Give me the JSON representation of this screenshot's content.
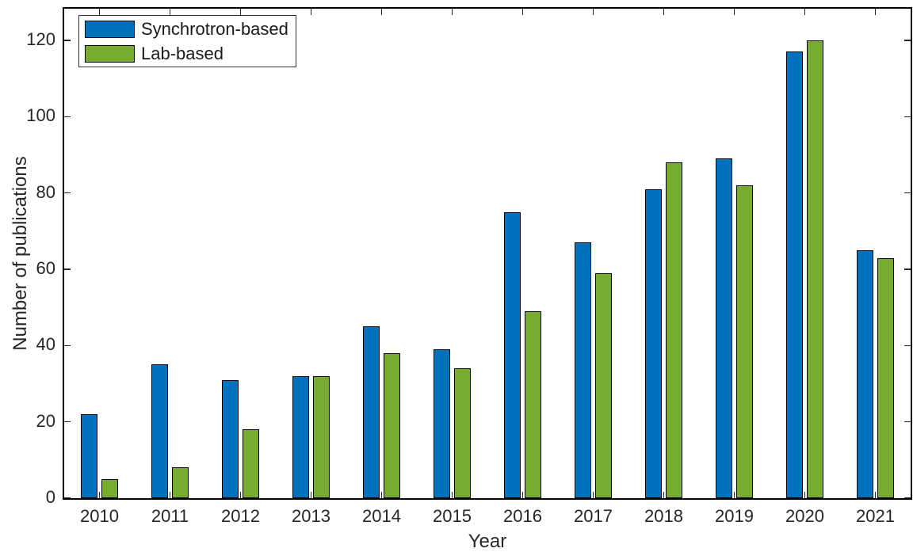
{
  "chart_data": {
    "type": "bar",
    "title": "",
    "xlabel": "Year",
    "ylabel": "Number of publications",
    "categories": [
      "2010",
      "2011",
      "2012",
      "2013",
      "2014",
      "2015",
      "2016",
      "2017",
      "2018",
      "2019",
      "2020",
      "2021"
    ],
    "series": [
      {
        "name": "Synchrotron-based",
        "color": "#0072BD",
        "values": [
          22,
          35,
          31,
          32,
          45,
          39,
          75,
          67,
          81,
          89,
          117,
          65
        ]
      },
      {
        "name": "Lab-based",
        "color": "#77AC30",
        "values": [
          5,
          8,
          18,
          32,
          38,
          34,
          49,
          59,
          88,
          82,
          120,
          63
        ]
      }
    ],
    "ylim": [
      0,
      128.3
    ],
    "yticks": [
      0,
      20,
      40,
      60,
      80,
      100,
      120
    ],
    "yticklabels": [
      "0",
      "20",
      "40",
      "60",
      "80",
      "100",
      "120"
    ],
    "grid": false,
    "legend_position": "top-left",
    "bar_edge_color": "#000000",
    "axis_color": "#000000",
    "tick_label_color": "#262626"
  }
}
